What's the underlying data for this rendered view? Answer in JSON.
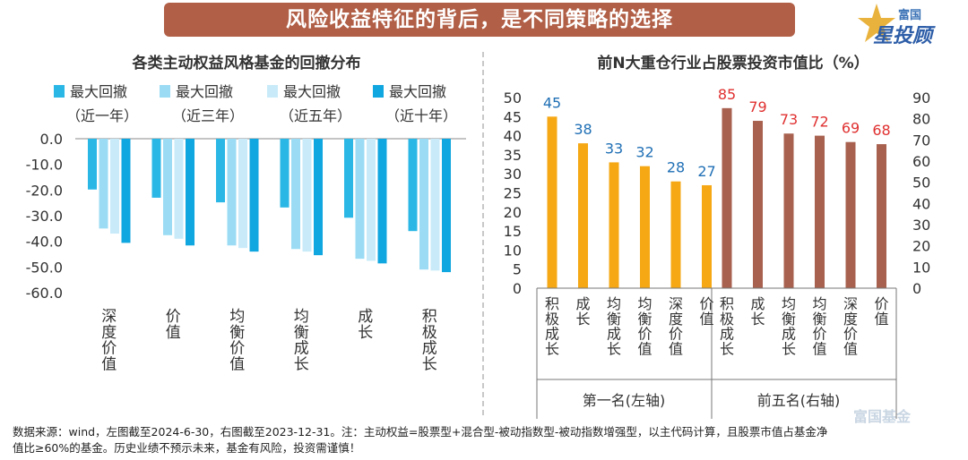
{
  "banner": {
    "title": "风险收益特征的背后，是不同策略的选择"
  },
  "brand": {
    "top": "富国",
    "main": "星投顾"
  },
  "watermark": "富国基金",
  "colors": {
    "s1": "#2bb7e6",
    "s2": "#9bdcf4",
    "s3": "#c9ebf9",
    "s4": "#10a6df",
    "orange": "#f5a814",
    "brown": "#a8614f",
    "blue_label": "#1f6fb5",
    "red_label": "#e03030"
  },
  "footnote": {
    "line1": "数据来源：wind，左图截至2024-6-30，右图截至2023-12-31。注：主动权益=股票型+混合型-被动指数型-被动指数增强型，以主代码计算，且股票市值占基金净",
    "line2": "值比≥60%的基金。历史业绩不预示未来，基金有风险，投资需谨慎！"
  },
  "chart_data": [
    {
      "type": "bar",
      "title": "各类主动权益风格基金的回撤分布",
      "categories": [
        "深度价值",
        "价值",
        "均衡价值",
        "均衡成长",
        "成长",
        "积极成长"
      ],
      "legend": [
        {
          "line1": "最大回撤",
          "line2": "（近一年）"
        },
        {
          "line1": "最大回撤",
          "line2": "（近三年）"
        },
        {
          "line1": "最大回撤",
          "line2": "（近五年）"
        },
        {
          "line1": "最大回撤",
          "line2": "（近十年）"
        }
      ],
      "series": [
        {
          "name": "最大回撤（近一年）",
          "values": [
            -19.8,
            -23.0,
            -24.8,
            -26.8,
            -30.8,
            -36.0
          ]
        },
        {
          "name": "最大回撤（近三年）",
          "values": [
            -35.0,
            -37.6,
            -41.6,
            -43.0,
            -46.8,
            -51.0
          ]
        },
        {
          "name": "最大回撤（近五年）",
          "values": [
            -37.0,
            -39.0,
            -42.6,
            -44.0,
            -47.6,
            -51.4
          ]
        },
        {
          "name": "最大回撤（近十年）",
          "values": [
            -40.6,
            -41.6,
            -44.0,
            -45.4,
            -48.6,
            -52.0
          ]
        }
      ],
      "ylim": [
        -60,
        0
      ],
      "yticks": [
        "0.0",
        "-10.0",
        "-20.0",
        "-30.0",
        "-40.0",
        "-50.0",
        "-60.0"
      ]
    },
    {
      "type": "bar",
      "title": "前N大重仓行业占股票投资市值比（%）",
      "groups": [
        {
          "name": "第一名(左轴)",
          "axis": "left",
          "categories": [
            "积极成长",
            "成长",
            "均衡成长",
            "均衡价值",
            "深度价值",
            "价值"
          ],
          "values": [
            45,
            38,
            33,
            32,
            28,
            27
          ],
          "labels": [
            "45",
            "38",
            "33",
            "32",
            "28",
            "27"
          ]
        },
        {
          "name": "前五名(右轴)",
          "axis": "right",
          "categories": [
            "积极成长",
            "成长",
            "均衡成长",
            "均衡价值",
            "深度价值",
            "价值"
          ],
          "values": [
            85,
            79,
            73,
            72,
            69,
            68
          ],
          "labels": [
            "85",
            "79",
            "73",
            "72",
            "69",
            "68"
          ]
        }
      ],
      "left_ylim": [
        0,
        50
      ],
      "right_ylim": [
        0,
        90
      ],
      "left_yticks": [
        "0",
        "5",
        "10",
        "15",
        "20",
        "25",
        "30",
        "35",
        "40",
        "45",
        "50"
      ],
      "right_yticks": [
        "0",
        "10",
        "20",
        "30",
        "40",
        "50",
        "60",
        "70",
        "80",
        "90"
      ]
    }
  ]
}
